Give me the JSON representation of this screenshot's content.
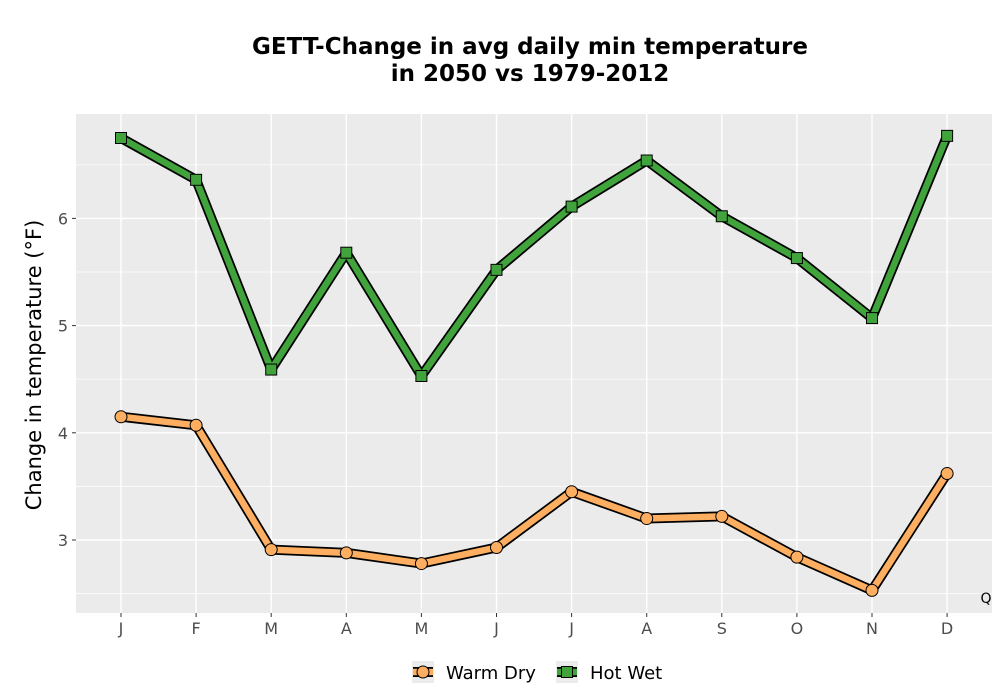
{
  "chart_data": {
    "type": "line",
    "title_lines": [
      "GETT-Change in avg daily min temperature",
      "in 2050 vs 1979-2012"
    ],
    "xlabel": "",
    "ylabel": "Change in temperature (°F)",
    "categories": [
      "J",
      "F",
      "M",
      "A",
      "M",
      "J",
      "J",
      "A",
      "S",
      "O",
      "N",
      "D"
    ],
    "y_ticks": [
      "3",
      "4",
      "5",
      "6"
    ],
    "ylim": [
      2.3,
      7.0
    ],
    "grid": true,
    "legend_position": "bottom",
    "corner_label": "Q",
    "series": [
      {
        "name": "Warm Dry",
        "marker": "circle",
        "color": "#fdae61",
        "values": [
          4.15,
          4.07,
          2.91,
          2.88,
          2.78,
          2.93,
          3.45,
          3.2,
          3.22,
          2.84,
          2.53,
          3.62
        ]
      },
      {
        "name": "Hot Wet",
        "marker": "square",
        "color": "#41a33b",
        "values": [
          6.75,
          6.36,
          4.59,
          5.68,
          4.53,
          5.52,
          6.11,
          6.54,
          6.02,
          5.63,
          5.07,
          6.77
        ]
      }
    ]
  }
}
